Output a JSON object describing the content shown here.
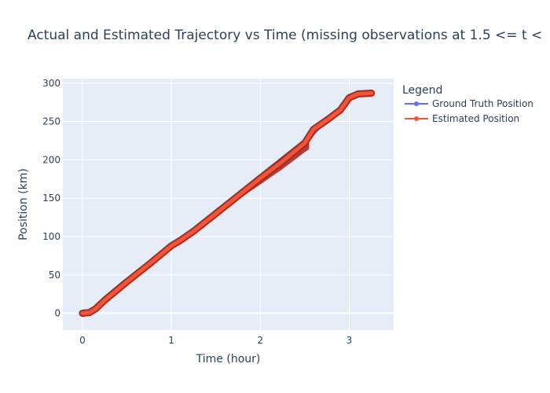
{
  "chart_data": {
    "type": "line",
    "title": "Actual and Estimated Trajectory vs Time (missing observations at 1.5 <= t <",
    "xlabel": "Time (hour)",
    "ylabel": "Position (km)",
    "xlim": [
      -0.22,
      3.5
    ],
    "ylim": [
      -22,
      306
    ],
    "xticks": [
      0,
      1,
      2,
      3
    ],
    "yticks": [
      0,
      50,
      100,
      150,
      200,
      250,
      300
    ],
    "grid": true,
    "legend": {
      "title": "Legend",
      "placement": "right",
      "entries": [
        "Ground Truth Position",
        "Estimated Position"
      ]
    },
    "series": [
      {
        "name": "Ground Truth Position",
        "color": "#636efa",
        "x": [
          0,
          0.08,
          0.15,
          0.25,
          0.5,
          0.75,
          1.0,
          1.25,
          1.5,
          1.75,
          2.0,
          2.25,
          2.5,
          2.75,
          3.0,
          3.1,
          3.25
        ],
        "y": [
          0,
          1,
          6,
          17,
          41,
          65,
          87,
          110,
          133,
          156,
          177,
          198,
          220,
          252,
          280,
          286,
          287
        ]
      },
      {
        "name": "Estimated Position",
        "color": "#ef553b",
        "x": [
          0,
          0.08,
          0.15,
          0.25,
          0.5,
          0.75,
          1.0,
          1.1,
          1.25,
          1.5,
          1.75,
          2.0,
          2.25,
          2.5,
          2.6,
          2.75,
          2.9,
          3.0,
          3.1,
          3.25
        ],
        "y": [
          0,
          1,
          6,
          17,
          41,
          64,
          88,
          95,
          107,
          130,
          153,
          176,
          198,
          222,
          240,
          252,
          265,
          281,
          286,
          287
        ]
      }
    ],
    "band": {
      "color": "#a02020",
      "x": [
        1.5,
        1.75,
        2.0,
        2.25,
        2.5,
        2.55
      ],
      "upper": [
        133,
        158,
        182,
        205,
        228,
        232
      ],
      "lower": [
        128,
        148,
        168,
        188,
        210,
        214
      ]
    }
  }
}
